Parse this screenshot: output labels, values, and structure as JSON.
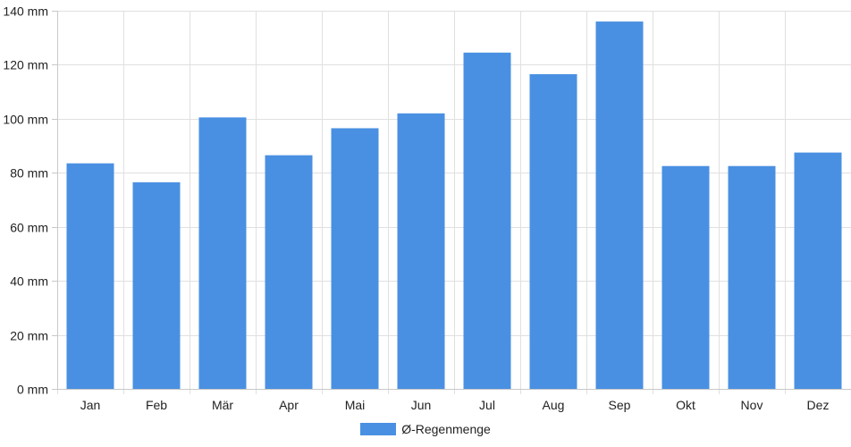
{
  "chart_data": {
    "type": "bar",
    "categories": [
      "Jan",
      "Feb",
      "Mär",
      "Apr",
      "Mai",
      "Jun",
      "Jul",
      "Aug",
      "Sep",
      "Okt",
      "Nov",
      "Dez"
    ],
    "series": [
      {
        "name": "Ø-Regenmenge",
        "values": [
          83.5,
          76.5,
          100.5,
          86.5,
          96.5,
          102,
          124.5,
          116.5,
          136,
          82.5,
          82.5,
          87.5
        ],
        "color": "#4a90e2"
      }
    ],
    "ylim": [
      0,
      140
    ],
    "yticks": [
      0,
      20,
      40,
      60,
      80,
      100,
      120,
      140
    ],
    "y_tick_suffix": " mm",
    "grid": true,
    "legend_position": "bottom-center",
    "grid_color": "#e0e0e0",
    "axis_color": "#c8c8c8"
  }
}
